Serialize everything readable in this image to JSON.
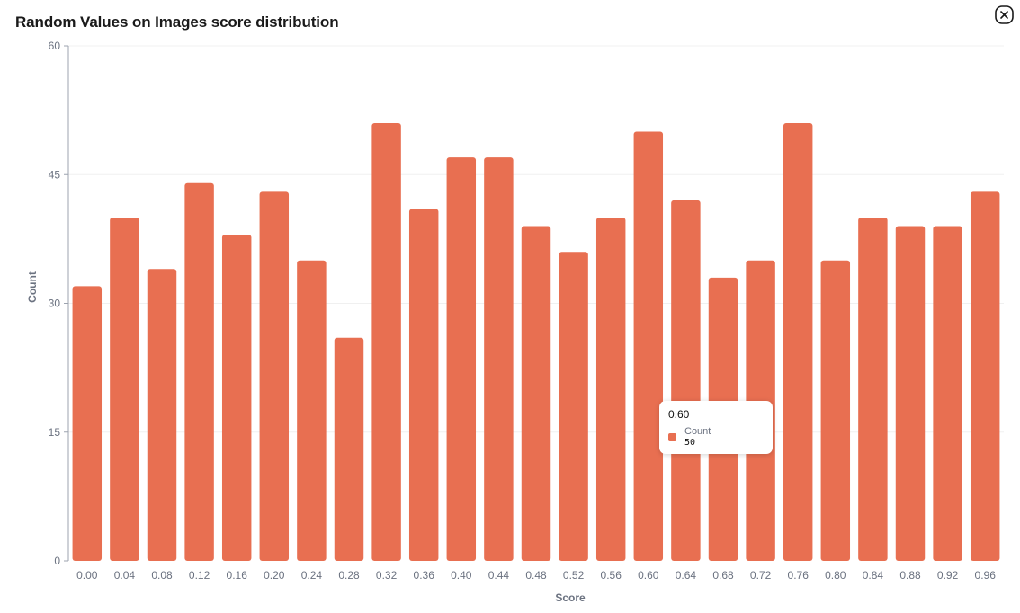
{
  "title": "Random Values on Images score distribution",
  "close_icon": "close-circle-icon",
  "colors": {
    "bar": "#E86F51",
    "axis": "#9ca3af",
    "grid": "#f0f0f0",
    "tick_text": "#6b7280",
    "label_text": "#6b7280"
  },
  "chart_data": {
    "type": "bar",
    "categories": [
      "0.00",
      "0.04",
      "0.08",
      "0.12",
      "0.16",
      "0.20",
      "0.24",
      "0.28",
      "0.32",
      "0.36",
      "0.40",
      "0.44",
      "0.48",
      "0.52",
      "0.56",
      "0.60",
      "0.64",
      "0.68",
      "0.72",
      "0.76",
      "0.80",
      "0.84",
      "0.88",
      "0.92",
      "0.96"
    ],
    "series": [
      {
        "name": "Count",
        "values": [
          32,
          40,
          34,
          44,
          38,
          43,
          35,
          26,
          51,
          41,
          47,
          47,
          39,
          36,
          40,
          50,
          42,
          33,
          35,
          51,
          35,
          40,
          39,
          39,
          43
        ]
      }
    ],
    "xlabel": "Score",
    "ylabel": "Count",
    "ylim": [
      0,
      60
    ],
    "yticks": [
      "0",
      "15",
      "30",
      "45",
      "60"
    ],
    "grid": true,
    "legend": "none"
  },
  "tooltip": {
    "category": "0.60",
    "series_label": "Count",
    "value": "50"
  }
}
